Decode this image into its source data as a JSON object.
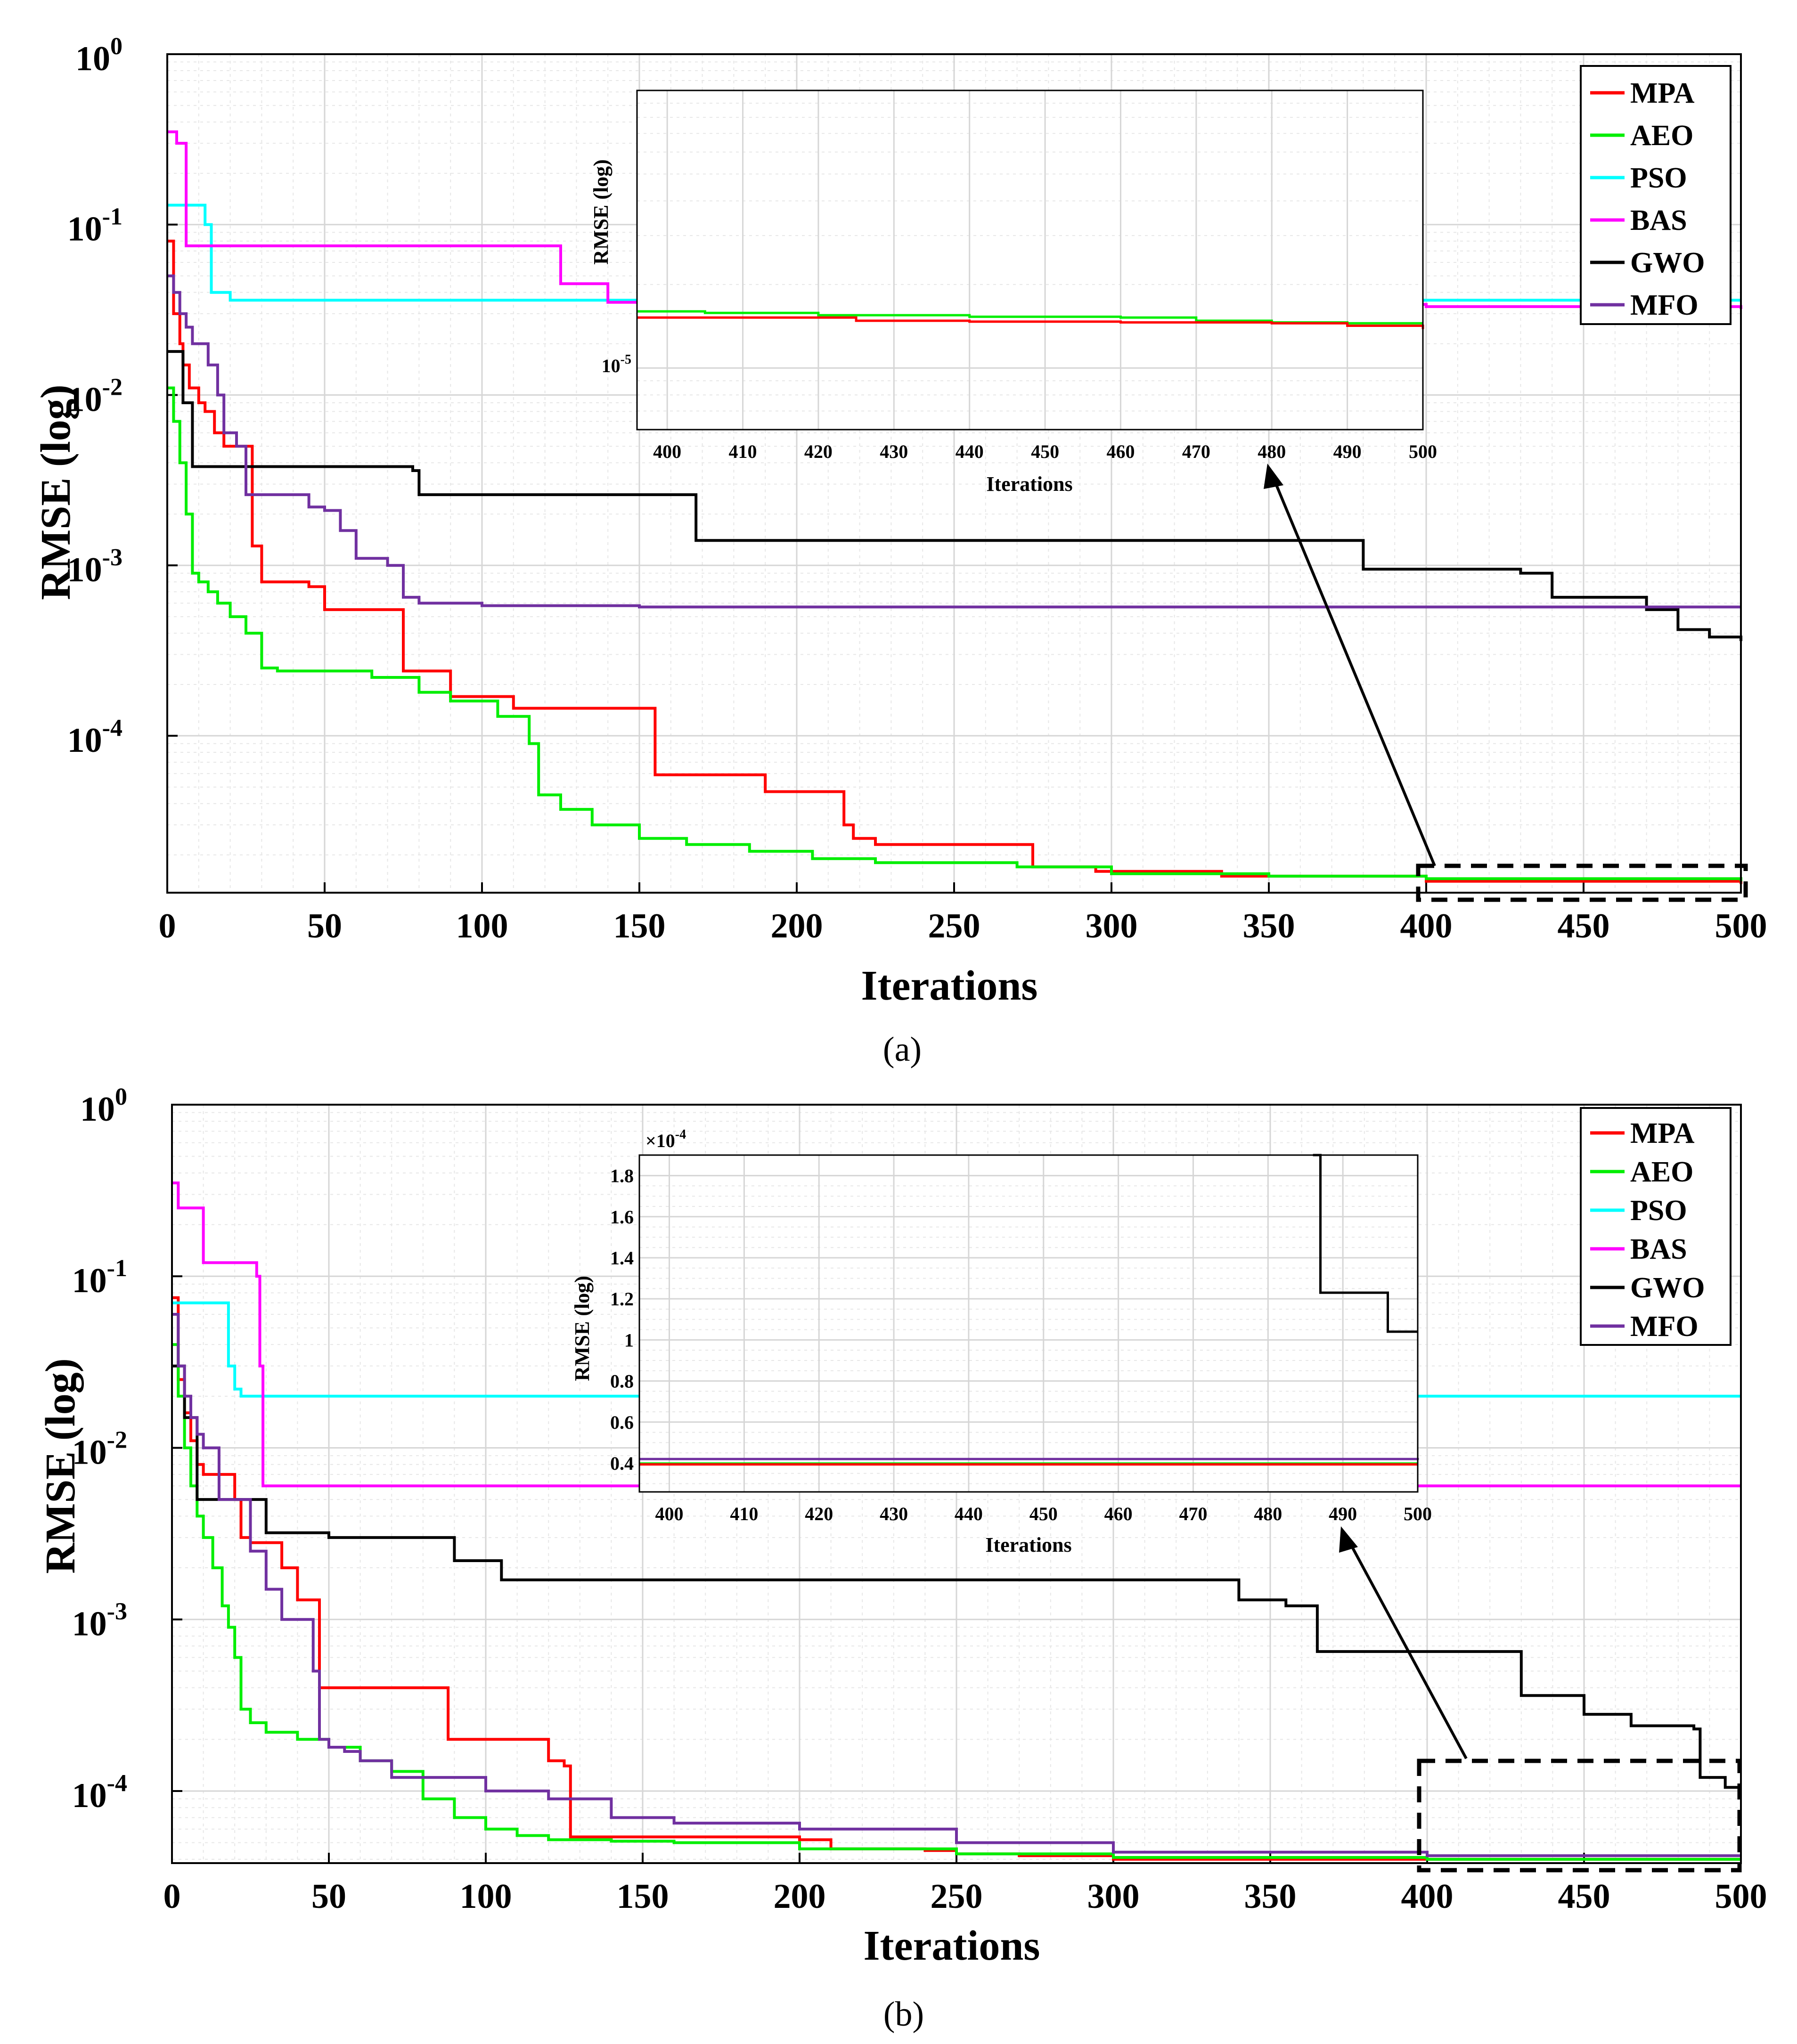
{
  "colors": {
    "MPA": "#ff0000",
    "AEO": "#00ee00",
    "PSO": "#00ffff",
    "BAS": "#ff00ff",
    "GWO": "#000000",
    "MFO": "#7030a0"
  },
  "chart_data": [
    {
      "type": "line",
      "panel_label": "(a)",
      "xlabel": "Iterations",
      "ylabel": "RMSE (log)",
      "yscale": "log",
      "xlim": [
        0,
        500
      ],
      "ylim": [
        1.2e-05,
        1
      ],
      "x_ticks": [
        "0",
        "50",
        "100",
        "150",
        "200",
        "250",
        "300",
        "350",
        "400",
        "450",
        "500"
      ],
      "y_tick_bases": [
        "10",
        "10",
        "10",
        "10",
        "10"
      ],
      "y_tick_exps": [
        "0",
        "-1",
        "-2",
        "-3",
        "-4"
      ],
      "legend_labels": [
        "MPA",
        "AEO",
        "PSO",
        "BAS",
        "GWO",
        "MFO"
      ],
      "series": [
        {
          "name": "MPA",
          "x": [
            0,
            2,
            4,
            5,
            7,
            10,
            12,
            15,
            18,
            22,
            27,
            30,
            33,
            45,
            50,
            55,
            75,
            78,
            90,
            98,
            110,
            130,
            150,
            155,
            175,
            190,
            200,
            215,
            218,
            225,
            270,
            275,
            295,
            315,
            335,
            400,
            500
          ],
          "values": [
            0.08,
            0.03,
            0.02,
            0.015,
            0.011,
            0.009,
            0.008,
            0.006,
            0.005,
            0.005,
            0.0013,
            0.0008,
            0.0008,
            0.00075,
            0.00055,
            0.00055,
            0.00024,
            0.00024,
            0.00017,
            0.00017,
            0.000145,
            0.000145,
            0.000145,
            5.9e-05,
            5.9e-05,
            4.7e-05,
            4.7e-05,
            3e-05,
            2.5e-05,
            2.3e-05,
            2.3e-05,
            1.7e-05,
            1.6e-05,
            1.6e-05,
            1.5e-05,
            1.4e-05,
            1.35e-05
          ]
        },
        {
          "name": "AEO",
          "x": [
            0,
            2,
            4,
            6,
            8,
            10,
            13,
            16,
            20,
            25,
            30,
            35,
            55,
            65,
            80,
            90,
            105,
            115,
            118,
            125,
            135,
            150,
            165,
            185,
            205,
            225,
            270,
            300,
            350,
            400,
            500
          ],
          "values": [
            0.011,
            0.007,
            0.004,
            0.002,
            0.0009,
            0.0008,
            0.0007,
            0.0006,
            0.0005,
            0.0004,
            0.00025,
            0.00024,
            0.00024,
            0.00022,
            0.00018,
            0.00016,
            0.00013,
            9e-05,
            4.5e-05,
            3.7e-05,
            3e-05,
            2.5e-05,
            2.3e-05,
            2.1e-05,
            1.9e-05,
            1.8e-05,
            1.7e-05,
            1.55e-05,
            1.5e-05,
            1.45e-05,
            1.4e-05
          ]
        },
        {
          "name": "PSO",
          "x": [
            0,
            5,
            10,
            12,
            14,
            20,
            500
          ],
          "values": [
            0.13,
            0.13,
            0.13,
            0.1,
            0.04,
            0.036,
            0.036
          ]
        },
        {
          "name": "BAS",
          "x": [
            0,
            3,
            5,
            6,
            20,
            120,
            125,
            135,
            140,
            250,
            400,
            500
          ],
          "values": [
            0.35,
            0.3,
            0.3,
            0.075,
            0.075,
            0.075,
            0.045,
            0.045,
            0.035,
            0.034,
            0.033,
            0.032
          ]
        },
        {
          "name": "GWO",
          "x": [
            0,
            3,
            5,
            8,
            10,
            30,
            60,
            78,
            80,
            100,
            130,
            165,
            168,
            200,
            300,
            370,
            380,
            390,
            410,
            430,
            440,
            460,
            470,
            480,
            490,
            500
          ],
          "values": [
            0.018,
            0.018,
            0.009,
            0.0038,
            0.0038,
            0.0038,
            0.0038,
            0.0036,
            0.0026,
            0.0026,
            0.0026,
            0.0026,
            0.0014,
            0.0014,
            0.0014,
            0.0014,
            0.00095,
            0.00095,
            0.00095,
            0.0009,
            0.00065,
            0.00065,
            0.00055,
            0.00042,
            0.00038,
            0.00036
          ]
        },
        {
          "name": "MFO",
          "x": [
            0,
            2,
            4,
            6,
            8,
            10,
            13,
            16,
            18,
            20,
            22,
            25,
            30,
            45,
            50,
            55,
            60,
            70,
            75,
            80,
            100,
            150,
            200,
            300,
            400,
            500
          ],
          "values": [
            0.05,
            0.04,
            0.03,
            0.025,
            0.02,
            0.02,
            0.015,
            0.01,
            0.006,
            0.006,
            0.005,
            0.0026,
            0.0026,
            0.0022,
            0.0021,
            0.0016,
            0.0011,
            0.001,
            0.00065,
            0.0006,
            0.00058,
            0.00057,
            0.00057,
            0.00057,
            0.00057,
            0.00057
          ]
        }
      ],
      "inset": {
        "xlabel": "Iterations",
        "ylabel": "RMSE (log)",
        "xlim": [
          396,
          500
        ],
        "ylim": [
          6e-06,
          0.0001
        ],
        "x_ticks": [
          "400",
          "410",
          "420",
          "430",
          "440",
          "450",
          "460",
          "470",
          "480",
          "490",
          "500"
        ],
        "y_tick_base": "10",
        "y_tick_exp": "-5",
        "series": [
          {
            "name": "AEO",
            "x": [
              396,
              405,
              420,
              440,
              460,
              470,
              480,
              490,
              500
            ],
            "values": [
              1.6e-05,
              1.58e-05,
              1.55e-05,
              1.53e-05,
              1.52e-05,
              1.48e-05,
              1.46e-05,
              1.45e-05,
              1.45e-05
            ]
          },
          {
            "name": "MPA",
            "x": [
              396,
              420,
              425,
              440,
              460,
              480,
              490,
              500
            ],
            "values": [
              1.52e-05,
              1.52e-05,
              1.48e-05,
              1.47e-05,
              1.46e-05,
              1.45e-05,
              1.42e-05,
              1.38e-05
            ]
          }
        ]
      }
    },
    {
      "type": "line",
      "panel_label": "(b)",
      "xlabel": "Iterations",
      "ylabel": "RMSE (log)",
      "yscale": "log",
      "xlim": [
        0,
        500
      ],
      "ylim": [
        3.8e-05,
        1
      ],
      "x_ticks": [
        "0",
        "50",
        "100",
        "150",
        "200",
        "250",
        "300",
        "350",
        "400",
        "450",
        "500"
      ],
      "y_tick_bases": [
        "10",
        "10",
        "10",
        "10",
        "10"
      ],
      "y_tick_exps": [
        "0",
        "-1",
        "-2",
        "-3",
        "-4"
      ],
      "legend_labels": [
        "MPA",
        "AEO",
        "PSO",
        "BAS",
        "GWO",
        "MFO"
      ],
      "series": [
        {
          "name": "MPA",
          "x": [
            0,
            2,
            4,
            6,
            8,
            10,
            15,
            20,
            22,
            25,
            30,
            35,
            40,
            45,
            47,
            50,
            60,
            85,
            88,
            100,
            115,
            120,
            125,
            127,
            130,
            150,
            200,
            210,
            240,
            250,
            270,
            300,
            400,
            500
          ],
          "values": [
            0.075,
            0.025,
            0.016,
            0.011,
            0.008,
            0.007,
            0.007,
            0.005,
            0.003,
            0.0028,
            0.0028,
            0.002,
            0.0013,
            0.0013,
            0.0004,
            0.0004,
            0.0004,
            0.0004,
            0.0002,
            0.0002,
            0.0002,
            0.00015,
            0.00014,
            5.4e-05,
            5.4e-05,
            5.4e-05,
            5.2e-05,
            4.6e-05,
            4.5e-05,
            4.3e-05,
            4.2e-05,
            4e-05,
            4e-05,
            4e-05
          ]
        },
        {
          "name": "AEO",
          "x": [
            0,
            2,
            4,
            6,
            8,
            10,
            13,
            16,
            18,
            20,
            22,
            25,
            30,
            40,
            50,
            60,
            70,
            80,
            90,
            100,
            110,
            120,
            140,
            160,
            200,
            250,
            300,
            400,
            500
          ],
          "values": [
            0.04,
            0.02,
            0.01,
            0.006,
            0.004,
            0.003,
            0.002,
            0.0012,
            0.0009,
            0.0006,
            0.0003,
            0.00025,
            0.00022,
            0.0002,
            0.00018,
            0.00015,
            0.00013,
            9e-05,
            7e-05,
            6e-05,
            5.5e-05,
            5.2e-05,
            5.1e-05,
            5e-05,
            4.6e-05,
            4.3e-05,
            4.1e-05,
            4e-05,
            4e-05
          ]
        },
        {
          "name": "PSO",
          "x": [
            0,
            10,
            16,
            18,
            20,
            22,
            60,
            300,
            500
          ],
          "values": [
            0.07,
            0.07,
            0.07,
            0.03,
            0.022,
            0.02,
            0.02,
            0.02,
            0.02
          ]
        },
        {
          "name": "BAS",
          "x": [
            0,
            2,
            4,
            8,
            10,
            25,
            27,
            28,
            29,
            100,
            300,
            500
          ],
          "values": [
            0.35,
            0.25,
            0.25,
            0.25,
            0.12,
            0.12,
            0.1,
            0.03,
            0.006,
            0.006,
            0.006,
            0.006
          ]
        },
        {
          "name": "GWO",
          "x": [
            0,
            4,
            8,
            10,
            25,
            30,
            50,
            80,
            90,
            100,
            105,
            110,
            300,
            335,
            340,
            355,
            365,
            400,
            425,
            430,
            445,
            450,
            465,
            480,
            485,
            487,
            495,
            500
          ],
          "values": [
            0.03,
            0.015,
            0.005,
            0.005,
            0.005,
            0.0032,
            0.003,
            0.003,
            0.0022,
            0.0022,
            0.0017,
            0.0017,
            0.0017,
            0.0017,
            0.0013,
            0.0012,
            0.00065,
            0.00065,
            0.00065,
            0.00036,
            0.00036,
            0.00028,
            0.00024,
            0.00024,
            0.00023,
            0.00012,
            0.000105,
            0.000105
          ]
        },
        {
          "name": "MFO",
          "x": [
            0,
            2,
            4,
            6,
            8,
            10,
            15,
            20,
            25,
            30,
            35,
            38,
            45,
            47,
            50,
            55,
            60,
            70,
            80,
            100,
            120,
            140,
            160,
            200,
            250,
            300,
            400,
            500
          ],
          "values": [
            0.06,
            0.03,
            0.02,
            0.015,
            0.012,
            0.01,
            0.005,
            0.005,
            0.0025,
            0.0015,
            0.001,
            0.001,
            0.0005,
            0.0002,
            0.00018,
            0.00017,
            0.00015,
            0.00012,
            0.00012,
            0.0001,
            9e-05,
            7e-05,
            6.5e-05,
            6e-05,
            5e-05,
            4.4e-05,
            4.2e-05,
            4.2e-05
          ]
        }
      ],
      "inset": {
        "xlabel": "Iterations",
        "ylabel": "RMSE (log)",
        "xlim": [
          396,
          500
        ],
        "ylim": [
          2.6e-05,
          0.00019
        ],
        "x_ticks": [
          "400",
          "410",
          "420",
          "430",
          "440",
          "450",
          "460",
          "470",
          "480",
          "490",
          "500"
        ],
        "y_multiplier": "×10",
        "y_multiplier_exp": "-4",
        "y_tick_labels": [
          "0.4",
          "0.6",
          "0.8",
          "1",
          "1.2",
          "1.4",
          "1.6",
          "1.8"
        ],
        "y_tick_values": [
          0.4,
          0.6,
          0.8,
          1.0,
          1.2,
          1.4,
          1.6,
          1.8
        ],
        "series": [
          {
            "name": "GWO",
            "x": [
              486,
              487,
              495,
              496,
              500
            ],
            "values": [
              0.00019,
              0.000123,
              0.000123,
              0.000104,
              0.000104
            ]
          },
          {
            "name": "MFO",
            "x": [
              396,
              450,
              500
            ],
            "values": [
              4.2e-05,
              4.2e-05,
              4.15e-05
            ]
          },
          {
            "name": "AEO",
            "x": [
              396,
              500
            ],
            "values": [
              3.98e-05,
              3.98e-05
            ]
          },
          {
            "name": "MPA",
            "x": [
              396,
              500
            ],
            "values": [
              3.94e-05,
              3.94e-05
            ]
          }
        ]
      }
    }
  ]
}
